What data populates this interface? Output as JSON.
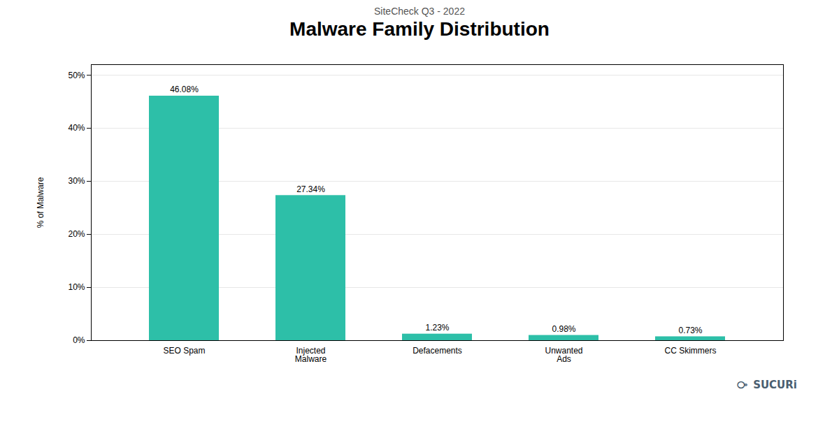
{
  "chart_data": {
    "type": "bar",
    "subtitle": "SiteCheck Q3 - 2022",
    "title": "Malware Family Distribution",
    "categories": [
      "SEO Spam",
      "Injected\nMalware",
      "Defacements",
      "Unwanted\nAds",
      "CC Skimmers"
    ],
    "values": [
      46.08,
      27.34,
      1.23,
      0.98,
      0.73
    ],
    "value_labels": [
      "46.08%",
      "27.34%",
      "1.23%",
      "0.98%",
      "0.73%"
    ],
    "data_labels": true,
    "color": "#2dbfa8",
    "ylabel": "% of Malware",
    "ylim": [
      0,
      52
    ],
    "yticks": [
      {
        "value": 0,
        "label": "0%"
      },
      {
        "value": 10,
        "label": "10%"
      },
      {
        "value": 20,
        "label": "20%"
      },
      {
        "value": 30,
        "label": "30%"
      },
      {
        "value": 40,
        "label": "40%"
      },
      {
        "value": 50,
        "label": "50%"
      }
    ],
    "grid": true,
    "annotations": [
      "⧂",
      "SUCURi"
    ]
  }
}
